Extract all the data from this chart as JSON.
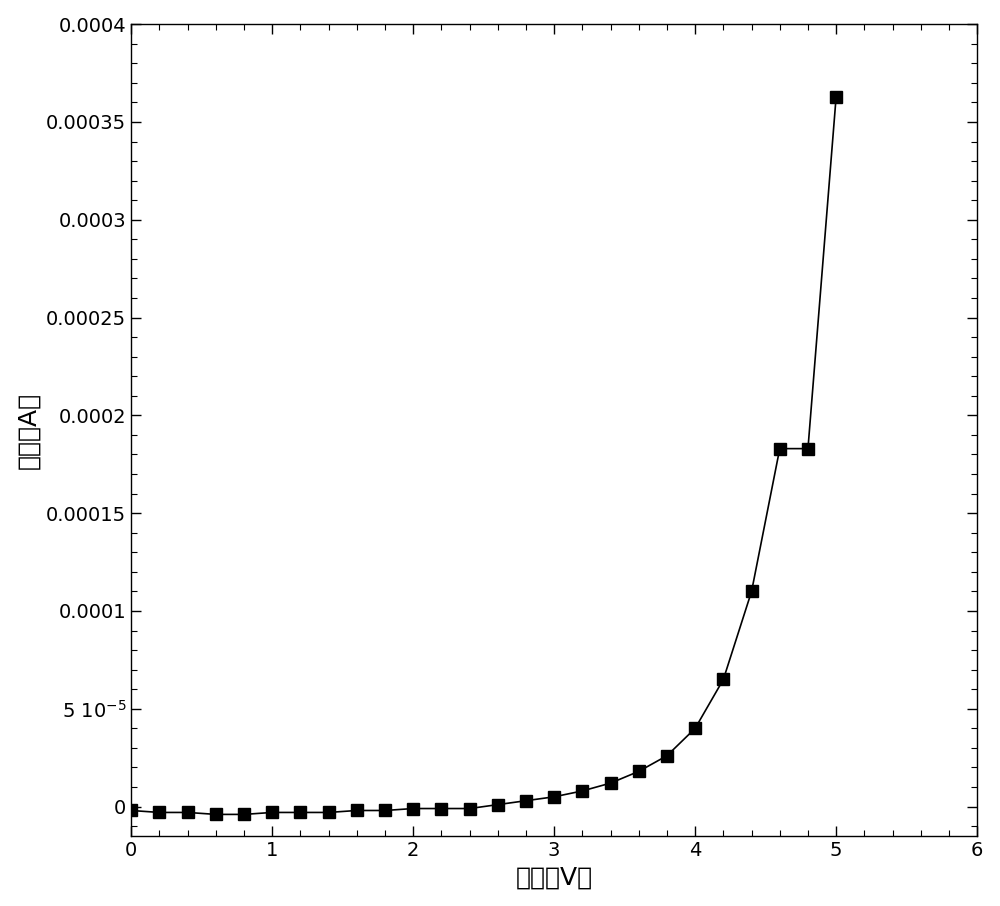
{
  "x": [
    0.0,
    0.2,
    0.4,
    0.6,
    0.8,
    1.0,
    1.2,
    1.4,
    1.6,
    1.8,
    2.0,
    2.2,
    2.4,
    2.6,
    2.8,
    3.0,
    3.2,
    3.4,
    3.6,
    3.8,
    4.0,
    4.2,
    4.4,
    4.6,
    4.8,
    5.0
  ],
  "y": [
    -2e-06,
    -3e-06,
    -3e-06,
    -4e-06,
    -4e-06,
    -3e-06,
    -3e-06,
    -3e-06,
    -2e-06,
    -2e-06,
    -1e-06,
    -1e-06,
    -1e-06,
    1e-06,
    3e-06,
    5e-06,
    8e-06,
    1.2e-05,
    1.8e-05,
    2.6e-05,
    4e-05,
    6.5e-05,
    0.00011,
    0.000183,
    0.000183,
    0.000363
  ],
  "xlabel": "电压（V）",
  "ylabel": "电流（A）",
  "xlim": [
    0,
    6
  ],
  "ylim": [
    -1.5e-05,
    0.0004
  ],
  "yticks": [
    0.0,
    5e-05,
    0.0001,
    0.00015,
    0.0002,
    0.00025,
    0.0003,
    0.00035,
    0.0004
  ],
  "xticks": [
    0,
    1,
    2,
    3,
    4,
    5,
    6
  ],
  "line_color": "#000000",
  "marker": "s",
  "marker_color": "#000000",
  "marker_size": 8,
  "linewidth": 1.2,
  "background_color": "#ffffff"
}
